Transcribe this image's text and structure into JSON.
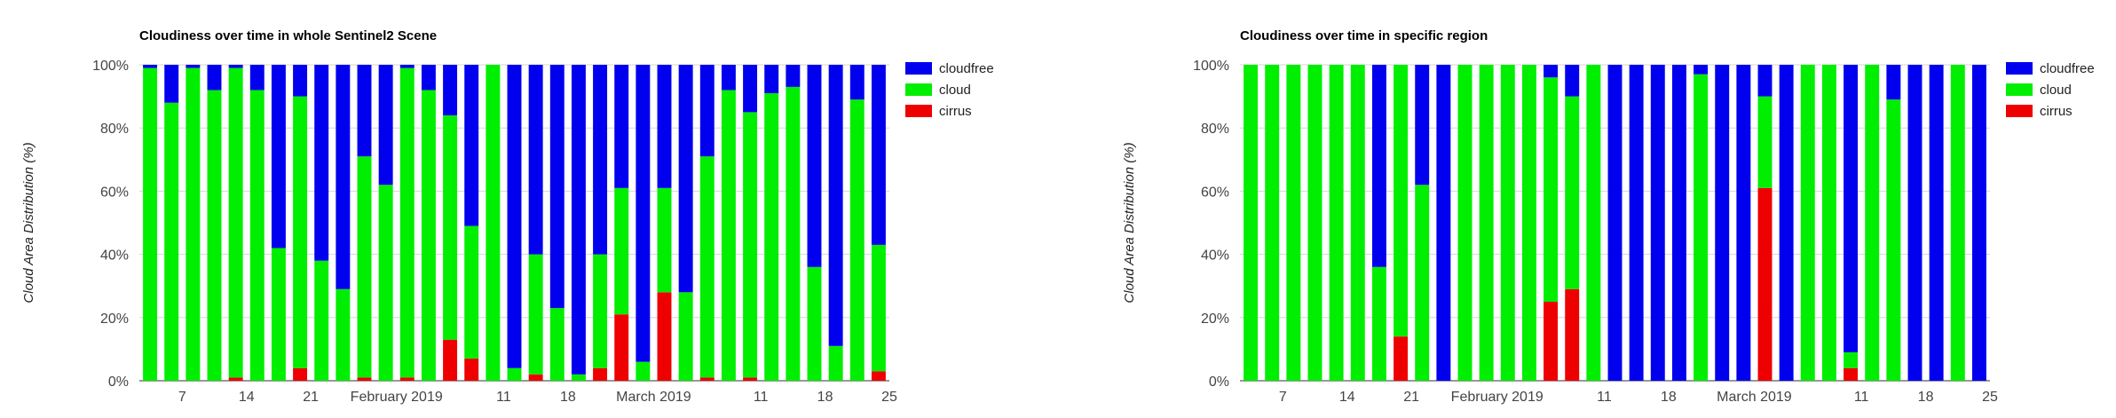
{
  "colors": {
    "cloudfree": "#0000ee",
    "cloud": "#00ee00",
    "cirrus": "#ee0000"
  },
  "chart_data": [
    {
      "type": "bar",
      "stacked": true,
      "title": "Cloudiness over time in whole Sentinel2 Scene",
      "ylabel": "Cloud Area Distribution (%)",
      "ylim": [
        0,
        100
      ],
      "yticks": [
        "0%",
        "20%",
        "40%",
        "60%",
        "80%",
        "100%"
      ],
      "xticks": [
        {
          "label": "7",
          "index": 2
        },
        {
          "label": "14",
          "index": 5
        },
        {
          "label": "21",
          "index": 8
        },
        {
          "label": "February 2019",
          "index": 12
        },
        {
          "label": "11",
          "index": 17
        },
        {
          "label": "18",
          "index": 20
        },
        {
          "label": "March 2019",
          "index": 24
        },
        {
          "label": "11",
          "index": 29
        },
        {
          "label": "18",
          "index": 32
        },
        {
          "label": "25",
          "index": 35
        }
      ],
      "legend": [
        "cloudfree",
        "cloud",
        "cirrus"
      ],
      "legend_position": "right",
      "grid": true,
      "bars": [
        {
          "cirrus": 0,
          "cloud": 99,
          "cloudfree": 1
        },
        {
          "cirrus": 0,
          "cloud": 88,
          "cloudfree": 12
        },
        {
          "cirrus": 0,
          "cloud": 99,
          "cloudfree": 1
        },
        {
          "cirrus": 0,
          "cloud": 92,
          "cloudfree": 8
        },
        {
          "cirrus": 1,
          "cloud": 98,
          "cloudfree": 1
        },
        {
          "cirrus": 0,
          "cloud": 92,
          "cloudfree": 8
        },
        {
          "cirrus": 0,
          "cloud": 42,
          "cloudfree": 58
        },
        {
          "cirrus": 4,
          "cloud": 86,
          "cloudfree": 10
        },
        {
          "cirrus": 0,
          "cloud": 38,
          "cloudfree": 62
        },
        {
          "cirrus": 0,
          "cloud": 29,
          "cloudfree": 71
        },
        {
          "cirrus": 1,
          "cloud": 70,
          "cloudfree": 29
        },
        {
          "cirrus": 0,
          "cloud": 62,
          "cloudfree": 38
        },
        {
          "cirrus": 1,
          "cloud": 98,
          "cloudfree": 1
        },
        {
          "cirrus": 0,
          "cloud": 92,
          "cloudfree": 8
        },
        {
          "cirrus": 13,
          "cloud": 71,
          "cloudfree": 16
        },
        {
          "cirrus": 7,
          "cloud": 42,
          "cloudfree": 51
        },
        {
          "cirrus": 0,
          "cloud": 100,
          "cloudfree": 0
        },
        {
          "cirrus": 0,
          "cloud": 4,
          "cloudfree": 96
        },
        {
          "cirrus": 2,
          "cloud": 38,
          "cloudfree": 60
        },
        {
          "cirrus": 0,
          "cloud": 23,
          "cloudfree": 77
        },
        {
          "cirrus": 0,
          "cloud": 2,
          "cloudfree": 98
        },
        {
          "cirrus": 4,
          "cloud": 36,
          "cloudfree": 60
        },
        {
          "cirrus": 21,
          "cloud": 40,
          "cloudfree": 39
        },
        {
          "cirrus": 0,
          "cloud": 6,
          "cloudfree": 94
        },
        {
          "cirrus": 28,
          "cloud": 33,
          "cloudfree": 39
        },
        {
          "cirrus": 0,
          "cloud": 28,
          "cloudfree": 72
        },
        {
          "cirrus": 1,
          "cloud": 70,
          "cloudfree": 29
        },
        {
          "cirrus": 0,
          "cloud": 92,
          "cloudfree": 8
        },
        {
          "cirrus": 1,
          "cloud": 84,
          "cloudfree": 15
        },
        {
          "cirrus": 0,
          "cloud": 91,
          "cloudfree": 9
        },
        {
          "cirrus": 0,
          "cloud": 93,
          "cloudfree": 7
        },
        {
          "cirrus": 0,
          "cloud": 36,
          "cloudfree": 64
        },
        {
          "cirrus": 0,
          "cloud": 11,
          "cloudfree": 89
        },
        {
          "cirrus": 0,
          "cloud": 89,
          "cloudfree": 11
        },
        {
          "cirrus": 3,
          "cloud": 40,
          "cloudfree": 57
        }
      ]
    },
    {
      "type": "bar",
      "stacked": true,
      "title": "Cloudiness over time in specific region",
      "ylabel": "Cloud Area Distribution (%)",
      "ylim": [
        0,
        100
      ],
      "yticks": [
        "0%",
        "20%",
        "40%",
        "60%",
        "80%",
        "100%"
      ],
      "xticks": [
        {
          "label": "7",
          "index": 2
        },
        {
          "label": "14",
          "index": 5
        },
        {
          "label": "21",
          "index": 8
        },
        {
          "label": "February 2019",
          "index": 12
        },
        {
          "label": "11",
          "index": 17
        },
        {
          "label": "18",
          "index": 20
        },
        {
          "label": "March 2019",
          "index": 24
        },
        {
          "label": "11",
          "index": 29
        },
        {
          "label": "18",
          "index": 32
        },
        {
          "label": "25",
          "index": 35
        }
      ],
      "legend": [
        "cloudfree",
        "cloud",
        "cirrus"
      ],
      "legend_position": "right",
      "grid": true,
      "bars": [
        {
          "cirrus": 0,
          "cloud": 100,
          "cloudfree": 0
        },
        {
          "cirrus": 0,
          "cloud": 100,
          "cloudfree": 0
        },
        {
          "cirrus": 0,
          "cloud": 100,
          "cloudfree": 0
        },
        {
          "cirrus": 0,
          "cloud": 100,
          "cloudfree": 0
        },
        {
          "cirrus": 0,
          "cloud": 100,
          "cloudfree": 0
        },
        {
          "cirrus": 0,
          "cloud": 100,
          "cloudfree": 0
        },
        {
          "cirrus": 0,
          "cloud": 36,
          "cloudfree": 64
        },
        {
          "cirrus": 14,
          "cloud": 86,
          "cloudfree": 0
        },
        {
          "cirrus": 0,
          "cloud": 62,
          "cloudfree": 38
        },
        {
          "cirrus": 0,
          "cloud": 0,
          "cloudfree": 100
        },
        {
          "cirrus": 0,
          "cloud": 100,
          "cloudfree": 0
        },
        {
          "cirrus": 0,
          "cloud": 100,
          "cloudfree": 0
        },
        {
          "cirrus": 0,
          "cloud": 100,
          "cloudfree": 0
        },
        {
          "cirrus": 0,
          "cloud": 100,
          "cloudfree": 0
        },
        {
          "cirrus": 25,
          "cloud": 71,
          "cloudfree": 4
        },
        {
          "cirrus": 29,
          "cloud": 61,
          "cloudfree": 10
        },
        {
          "cirrus": 0,
          "cloud": 100,
          "cloudfree": 0
        },
        {
          "cirrus": 0,
          "cloud": 0,
          "cloudfree": 100
        },
        {
          "cirrus": 0,
          "cloud": 0,
          "cloudfree": 100
        },
        {
          "cirrus": 0,
          "cloud": 0,
          "cloudfree": 100
        },
        {
          "cirrus": 0,
          "cloud": 0,
          "cloudfree": 100
        },
        {
          "cirrus": 0,
          "cloud": 97,
          "cloudfree": 3
        },
        {
          "cirrus": 0,
          "cloud": 0,
          "cloudfree": 100
        },
        {
          "cirrus": 0,
          "cloud": 0,
          "cloudfree": 100
        },
        {
          "cirrus": 61,
          "cloud": 29,
          "cloudfree": 10
        },
        {
          "cirrus": 0,
          "cloud": 0,
          "cloudfree": 100
        },
        {
          "cirrus": 0,
          "cloud": 100,
          "cloudfree": 0
        },
        {
          "cirrus": 0,
          "cloud": 100,
          "cloudfree": 0
        },
        {
          "cirrus": 4,
          "cloud": 5,
          "cloudfree": 91
        },
        {
          "cirrus": 0,
          "cloud": 100,
          "cloudfree": 0
        },
        {
          "cirrus": 0,
          "cloud": 89,
          "cloudfree": 11
        },
        {
          "cirrus": 0,
          "cloud": 0,
          "cloudfree": 100
        },
        {
          "cirrus": 0,
          "cloud": 0,
          "cloudfree": 100
        },
        {
          "cirrus": 0,
          "cloud": 100,
          "cloudfree": 0
        },
        {
          "cirrus": 0,
          "cloud": 0,
          "cloudfree": 100
        }
      ]
    }
  ]
}
